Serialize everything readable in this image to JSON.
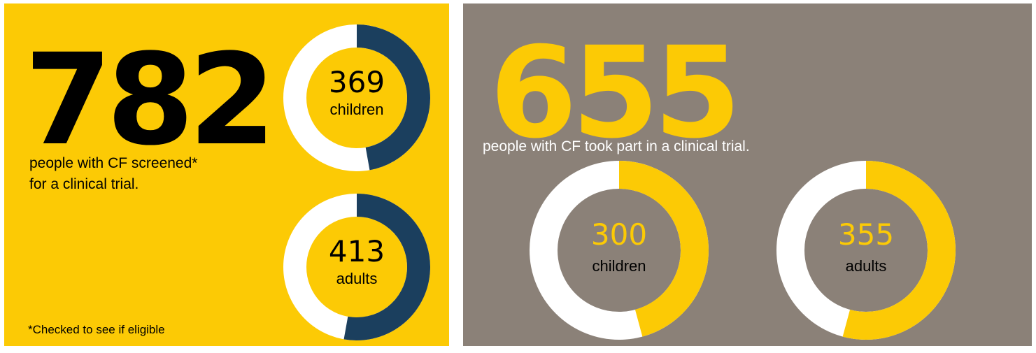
{
  "chart_data": [
    {
      "type": "donut",
      "total": 782,
      "caption": [
        "people with CF screened*",
        "for a clinical trial."
      ],
      "footnote": "*Checked to see if eligible",
      "categories": [
        "children",
        "adults"
      ],
      "values": [
        369,
        413
      ],
      "background": "#fcca05",
      "color": "#1b3f5e",
      "rest_color": "#ffffff",
      "total_color": "#000000",
      "number_color": "#000000",
      "text_color": "#000000"
    },
    {
      "type": "donut",
      "total": 655,
      "caption": [
        "people with CF took part in a clinical trial."
      ],
      "categories": [
        "children",
        "adults"
      ],
      "values": [
        300,
        355
      ],
      "background": "#8b8178",
      "color": "#fcca05",
      "rest_color": "#ffffff",
      "total_color": "#fcca05",
      "number_color": "#fcca05",
      "text_color": "#000000",
      "caption_color": "#ffffff"
    }
  ]
}
